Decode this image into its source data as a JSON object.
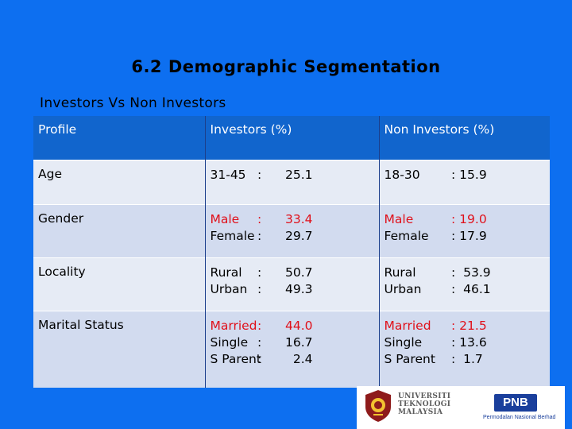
{
  "slide": {
    "title": "6.2  Demographic Segmentation",
    "subtitle": "Investors  Vs  Non Investors"
  },
  "table": {
    "headers": [
      "Profile",
      "Investors  (%)",
      "Non  Investors (%)"
    ],
    "rows": [
      {
        "profile": "Age",
        "inv_labels": "31-45",
        "inv_colons": ":",
        "inv_values": "25.1",
        "non_labels": "18-30",
        "non_values": ": 15.9"
      },
      {
        "profile": "Gender",
        "inv_labels": "Male\nFemale",
        "inv_colons": ":\n:",
        "inv_values": "33.4\n29.7",
        "non_labels": "Male\nFemale",
        "non_values": ": 19.0\n: 17.9"
      },
      {
        "profile": "Locality",
        "inv_labels": "Rural\nUrban",
        "inv_colons": ":\n:",
        "inv_values": "50.7\n49.3",
        "non_labels": "Rural\nUrban",
        "non_values": ":  53.9\n:  46.1"
      },
      {
        "profile": "Marital Status",
        "inv_labels": "Married\nSingle\nS Parent",
        "inv_colons": ":\n:\n:",
        "inv_values": "44.0\n16.7\n  2.4",
        "non_labels": "Married\nSingle\nS Parent",
        "non_values": ": 21.5\n: 13.6\n:  1.7"
      }
    ]
  },
  "logos": {
    "utm": "UNIVERSITI\nTEKNOLOGI\nMALAYSIA",
    "pnb": "PNB",
    "pnb_sub": "Permodalan Nasional Berhad"
  },
  "colors": {
    "background": "#0d6ff0",
    "header": "#1165cd",
    "row_light": "#e6ebf5",
    "row_dark": "#d2dbef",
    "highlight_red": "#e0101a",
    "pnb_blue": "#1a3f9c"
  }
}
